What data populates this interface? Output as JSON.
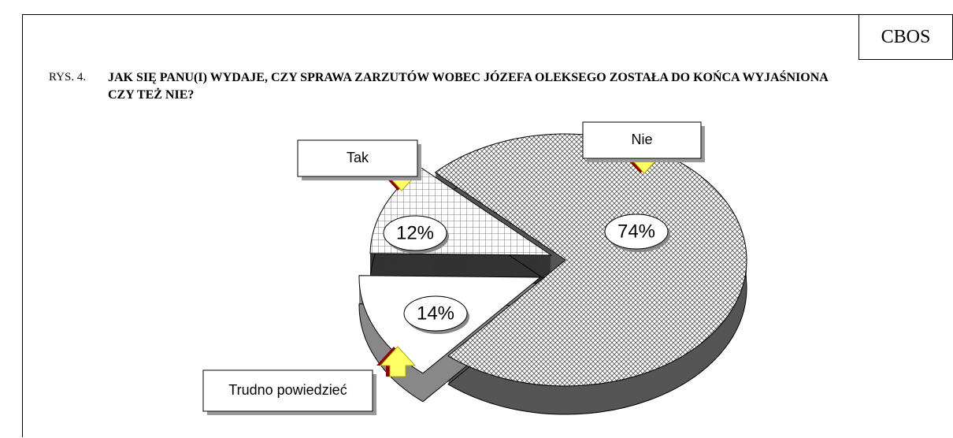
{
  "chart_data": {
    "type": "pie",
    "source": "CBOS",
    "figure": "RYS. 4.",
    "title": "JAK SIĘ PANU(I) WYDAJE, CZY SPRAWA ZARZUTÓW WOBEC JÓZEFA OLEKSEGO ZOSTAŁA DO KOŃCA WYJAŚNIONA CZY TEŻ NIE?",
    "categories": [
      "Nie",
      "Trudno powiedzieć",
      "Tak"
    ],
    "values": [
      74,
      14,
      12
    ],
    "value_labels": [
      "74%",
      "14%",
      "12%"
    ]
  }
}
